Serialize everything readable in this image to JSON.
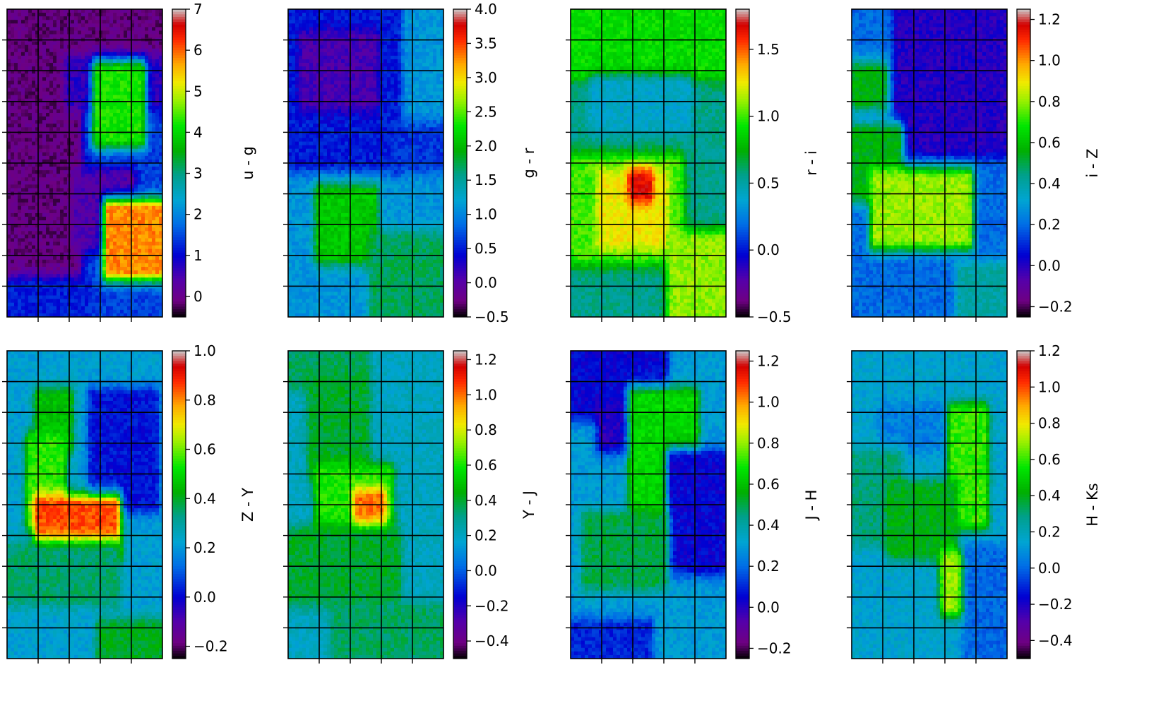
{
  "chart_data": [
    {
      "type": "heatmap",
      "colorbar_label": "u - g",
      "clim": [
        -0.5,
        7
      ],
      "colorbar_ticks": [
        {
          "v": 0,
          "t": "0"
        },
        {
          "v": 1,
          "t": "1"
        },
        {
          "v": 2,
          "t": "2"
        },
        {
          "v": 3,
          "t": "3"
        },
        {
          "v": 4,
          "t": "4"
        },
        {
          "v": 5,
          "t": "5"
        },
        {
          "v": 6,
          "t": "6"
        },
        {
          "v": 7,
          "t": "7"
        }
      ],
      "base_level": 1.4,
      "grid": true,
      "features": [
        {
          "x": 0.0,
          "y": 0.0,
          "w": 0.45,
          "h": 0.9,
          "v": -0.1
        },
        {
          "x": 0.45,
          "y": 0.0,
          "w": 0.55,
          "h": 0.18,
          "v": -0.1
        },
        {
          "x": 0.4,
          "y": 0.18,
          "w": 0.6,
          "h": 0.12,
          "v": 0.7
        },
        {
          "x": 0.58,
          "y": 0.2,
          "w": 0.28,
          "h": 0.22,
          "v": 4.2
        },
        {
          "x": 0.45,
          "y": 0.55,
          "w": 0.35,
          "h": 0.2,
          "v": 0.4
        },
        {
          "x": 0.65,
          "y": 0.65,
          "w": 0.35,
          "h": 0.2,
          "v": 5.8
        },
        {
          "x": 0.0,
          "y": 0.9,
          "w": 0.5,
          "h": 0.1,
          "v": 1.2
        }
      ]
    },
    {
      "type": "heatmap",
      "colorbar_label": "g - r",
      "clim": [
        -0.5,
        4
      ],
      "colorbar_ticks": [
        {
          "v": -0.5,
          "t": "−0.5"
        },
        {
          "v": 0,
          "t": "0.0"
        },
        {
          "v": 0.5,
          "t": "0.5"
        },
        {
          "v": 1,
          "t": "1.0"
        },
        {
          "v": 1.5,
          "t": "1.5"
        },
        {
          "v": 2,
          "t": "2.0"
        },
        {
          "v": 2.5,
          "t": "2.5"
        },
        {
          "v": 3,
          "t": "3.0"
        },
        {
          "v": 3.5,
          "t": "3.5"
        },
        {
          "v": 4,
          "t": "4.0"
        }
      ],
      "base_level": 1.1,
      "grid": true,
      "features": [
        {
          "x": 0.0,
          "y": 0.0,
          "w": 0.7,
          "h": 0.5,
          "v": 0.5
        },
        {
          "x": 0.1,
          "y": 0.1,
          "w": 0.45,
          "h": 0.2,
          "v": 0.1
        },
        {
          "x": 0.7,
          "y": 0.4,
          "w": 0.3,
          "h": 0.1,
          "v": 0.6
        },
        {
          "x": 0.2,
          "y": 0.6,
          "w": 0.35,
          "h": 0.2,
          "v": 2.1
        },
        {
          "x": 0.55,
          "y": 0.75,
          "w": 0.45,
          "h": 0.25,
          "v": 1.7
        }
      ]
    },
    {
      "type": "heatmap",
      "colorbar_label": "r - i",
      "clim": [
        -0.5,
        1.8
      ],
      "colorbar_ticks": [
        {
          "v": -0.5,
          "t": "−0.5"
        },
        {
          "v": 0,
          "t": "0.0"
        },
        {
          "v": 0.5,
          "t": "0.5"
        },
        {
          "v": 1,
          "t": "1.0"
        },
        {
          "v": 1.5,
          "t": "1.5"
        }
      ],
      "base_level": 0.55,
      "grid": true,
      "features": [
        {
          "x": 0.0,
          "y": 0.0,
          "w": 1.0,
          "h": 0.2,
          "v": 0.9
        },
        {
          "x": 0.15,
          "y": 0.25,
          "w": 0.6,
          "h": 0.12,
          "v": 0.4
        },
        {
          "x": 0.0,
          "y": 0.5,
          "w": 0.7,
          "h": 0.3,
          "v": 1.0
        },
        {
          "x": 0.2,
          "y": 0.55,
          "w": 0.4,
          "h": 0.2,
          "v": 1.25
        },
        {
          "x": 0.4,
          "y": 0.55,
          "w": 0.1,
          "h": 0.05,
          "v": 1.65
        },
        {
          "x": 0.65,
          "y": 0.75,
          "w": 0.35,
          "h": 0.25,
          "v": 1.1
        }
      ]
    },
    {
      "type": "heatmap",
      "colorbar_label": "i - Z",
      "clim": [
        -0.25,
        1.25
      ],
      "colorbar_ticks": [
        {
          "v": -0.2,
          "t": "−0.2"
        },
        {
          "v": 0,
          "t": "0.0"
        },
        {
          "v": 0.2,
          "t": "0.2"
        },
        {
          "v": 0.4,
          "t": "0.4"
        },
        {
          "v": 0.6,
          "t": "0.6"
        },
        {
          "v": 0.8,
          "t": "0.8"
        },
        {
          "v": 1,
          "t": "1.0"
        },
        {
          "v": 1.2,
          "t": "1.2"
        }
      ],
      "base_level": 0.2,
      "grid": true,
      "features": [
        {
          "x": 0.3,
          "y": 0.0,
          "w": 0.7,
          "h": 0.45,
          "v": 0.0
        },
        {
          "x": 0.0,
          "y": 0.2,
          "w": 0.2,
          "h": 0.1,
          "v": 0.55
        },
        {
          "x": 0.0,
          "y": 0.4,
          "w": 0.3,
          "h": 0.2,
          "v": 0.55
        },
        {
          "x": 0.15,
          "y": 0.55,
          "w": 0.6,
          "h": 0.2,
          "v": 0.8
        },
        {
          "x": 0.7,
          "y": 0.85,
          "w": 0.3,
          "h": 0.15,
          "v": 0.4
        }
      ]
    },
    {
      "type": "heatmap",
      "colorbar_label": "Z - Y",
      "clim": [
        -0.25,
        1.0
      ],
      "colorbar_ticks": [
        {
          "v": -0.2,
          "t": "−0.2"
        },
        {
          "v": 0,
          "t": "0.0"
        },
        {
          "v": 0.2,
          "t": "0.2"
        },
        {
          "v": 0.4,
          "t": "0.4"
        },
        {
          "v": 0.6,
          "t": "0.6"
        },
        {
          "v": 0.8,
          "t": "0.8"
        },
        {
          "v": 1,
          "t": "1.0"
        }
      ],
      "base_level": 0.22,
      "grid": true,
      "features": [
        {
          "x": 0.55,
          "y": 0.15,
          "w": 0.4,
          "h": 0.35,
          "v": 0.02
        },
        {
          "x": 0.2,
          "y": 0.15,
          "w": 0.2,
          "h": 0.15,
          "v": 0.45
        },
        {
          "x": 0.15,
          "y": 0.3,
          "w": 0.2,
          "h": 0.25,
          "v": 0.55
        },
        {
          "x": 0.2,
          "y": 0.5,
          "w": 0.5,
          "h": 0.15,
          "v": 0.85
        },
        {
          "x": 0.0,
          "y": 0.65,
          "w": 0.7,
          "h": 0.15,
          "v": 0.35
        },
        {
          "x": 0.6,
          "y": 0.9,
          "w": 0.4,
          "h": 0.1,
          "v": 0.4
        }
      ]
    },
    {
      "type": "heatmap",
      "colorbar_label": "Y - J",
      "clim": [
        -0.5,
        1.25
      ],
      "colorbar_ticks": [
        {
          "v": -0.4,
          "t": "−0.4"
        },
        {
          "v": -0.2,
          "t": "−0.2"
        },
        {
          "v": 0,
          "t": "0.0"
        },
        {
          "v": 0.2,
          "t": "0.2"
        },
        {
          "v": 0.4,
          "t": "0.4"
        },
        {
          "v": 0.6,
          "t": "0.6"
        },
        {
          "v": 0.8,
          "t": "0.8"
        },
        {
          "v": 1,
          "t": "1.0"
        },
        {
          "v": 1.2,
          "t": "1.2"
        }
      ],
      "base_level": 0.2,
      "grid": true,
      "features": [
        {
          "x": 0.0,
          "y": 0.0,
          "w": 0.5,
          "h": 0.1,
          "v": 0.35
        },
        {
          "x": 0.15,
          "y": 0.1,
          "w": 0.35,
          "h": 0.3,
          "v": 0.4
        },
        {
          "x": 0.2,
          "y": 0.4,
          "w": 0.45,
          "h": 0.2,
          "v": 0.6
        },
        {
          "x": 0.45,
          "y": 0.48,
          "w": 0.15,
          "h": 0.08,
          "v": 1.0
        },
        {
          "x": 0.0,
          "y": 0.6,
          "w": 0.7,
          "h": 0.2,
          "v": 0.4
        },
        {
          "x": 0.3,
          "y": 0.85,
          "w": 0.7,
          "h": 0.15,
          "v": 0.35
        }
      ]
    },
    {
      "type": "heatmap",
      "colorbar_label": "J - H",
      "clim": [
        -0.25,
        1.25
      ],
      "colorbar_ticks": [
        {
          "v": -0.2,
          "t": "−0.2"
        },
        {
          "v": 0,
          "t": "0.0"
        },
        {
          "v": 0.2,
          "t": "0.2"
        },
        {
          "v": 0.4,
          "t": "0.4"
        },
        {
          "v": 0.6,
          "t": "0.6"
        },
        {
          "v": 0.8,
          "t": "0.8"
        },
        {
          "v": 1,
          "t": "1.0"
        },
        {
          "v": 1.2,
          "t": "1.2"
        }
      ],
      "base_level": 0.3,
      "grid": true,
      "features": [
        {
          "x": 0.0,
          "y": 0.0,
          "w": 0.6,
          "h": 0.2,
          "v": 0.05
        },
        {
          "x": 0.2,
          "y": 0.2,
          "w": 0.2,
          "h": 0.1,
          "v": 0.0
        },
        {
          "x": 0.4,
          "y": 0.15,
          "w": 0.4,
          "h": 0.5,
          "v": 0.65
        },
        {
          "x": 0.65,
          "y": 0.35,
          "w": 0.35,
          "h": 0.35,
          "v": 0.05
        },
        {
          "x": 0.1,
          "y": 0.55,
          "w": 0.5,
          "h": 0.2,
          "v": 0.5
        },
        {
          "x": 0.0,
          "y": 0.9,
          "w": 0.5,
          "h": 0.1,
          "v": 0.1
        }
      ]
    },
    {
      "type": "heatmap",
      "colorbar_label": "H - Ks",
      "clim": [
        -0.5,
        1.2
      ],
      "colorbar_ticks": [
        {
          "v": -0.4,
          "t": "−0.4"
        },
        {
          "v": -0.2,
          "t": "−0.2"
        },
        {
          "v": 0,
          "t": "0.0"
        },
        {
          "v": 0.2,
          "t": "0.2"
        },
        {
          "v": 0.4,
          "t": "0.4"
        },
        {
          "v": 0.6,
          "t": "0.6"
        },
        {
          "v": 0.8,
          "t": "0.8"
        },
        {
          "v": 1,
          "t": "1.0"
        },
        {
          "v": 1.2,
          "t": "1.2"
        }
      ],
      "base_level": 0.15,
      "grid": true,
      "features": [
        {
          "x": 0.2,
          "y": 0.2,
          "w": 0.45,
          "h": 0.1,
          "v": 0.05
        },
        {
          "x": 0.65,
          "y": 0.2,
          "w": 0.2,
          "h": 0.35,
          "v": 0.6
        },
        {
          "x": 0.0,
          "y": 0.35,
          "w": 0.3,
          "h": 0.25,
          "v": 0.3
        },
        {
          "x": 0.25,
          "y": 0.45,
          "w": 0.4,
          "h": 0.2,
          "v": 0.4
        },
        {
          "x": 0.6,
          "y": 0.68,
          "w": 0.4,
          "h": 0.15,
          "v": 0.7
        },
        {
          "x": 0.75,
          "y": 0.65,
          "w": 0.25,
          "h": 0.35,
          "v": 0.0
        }
      ]
    }
  ]
}
